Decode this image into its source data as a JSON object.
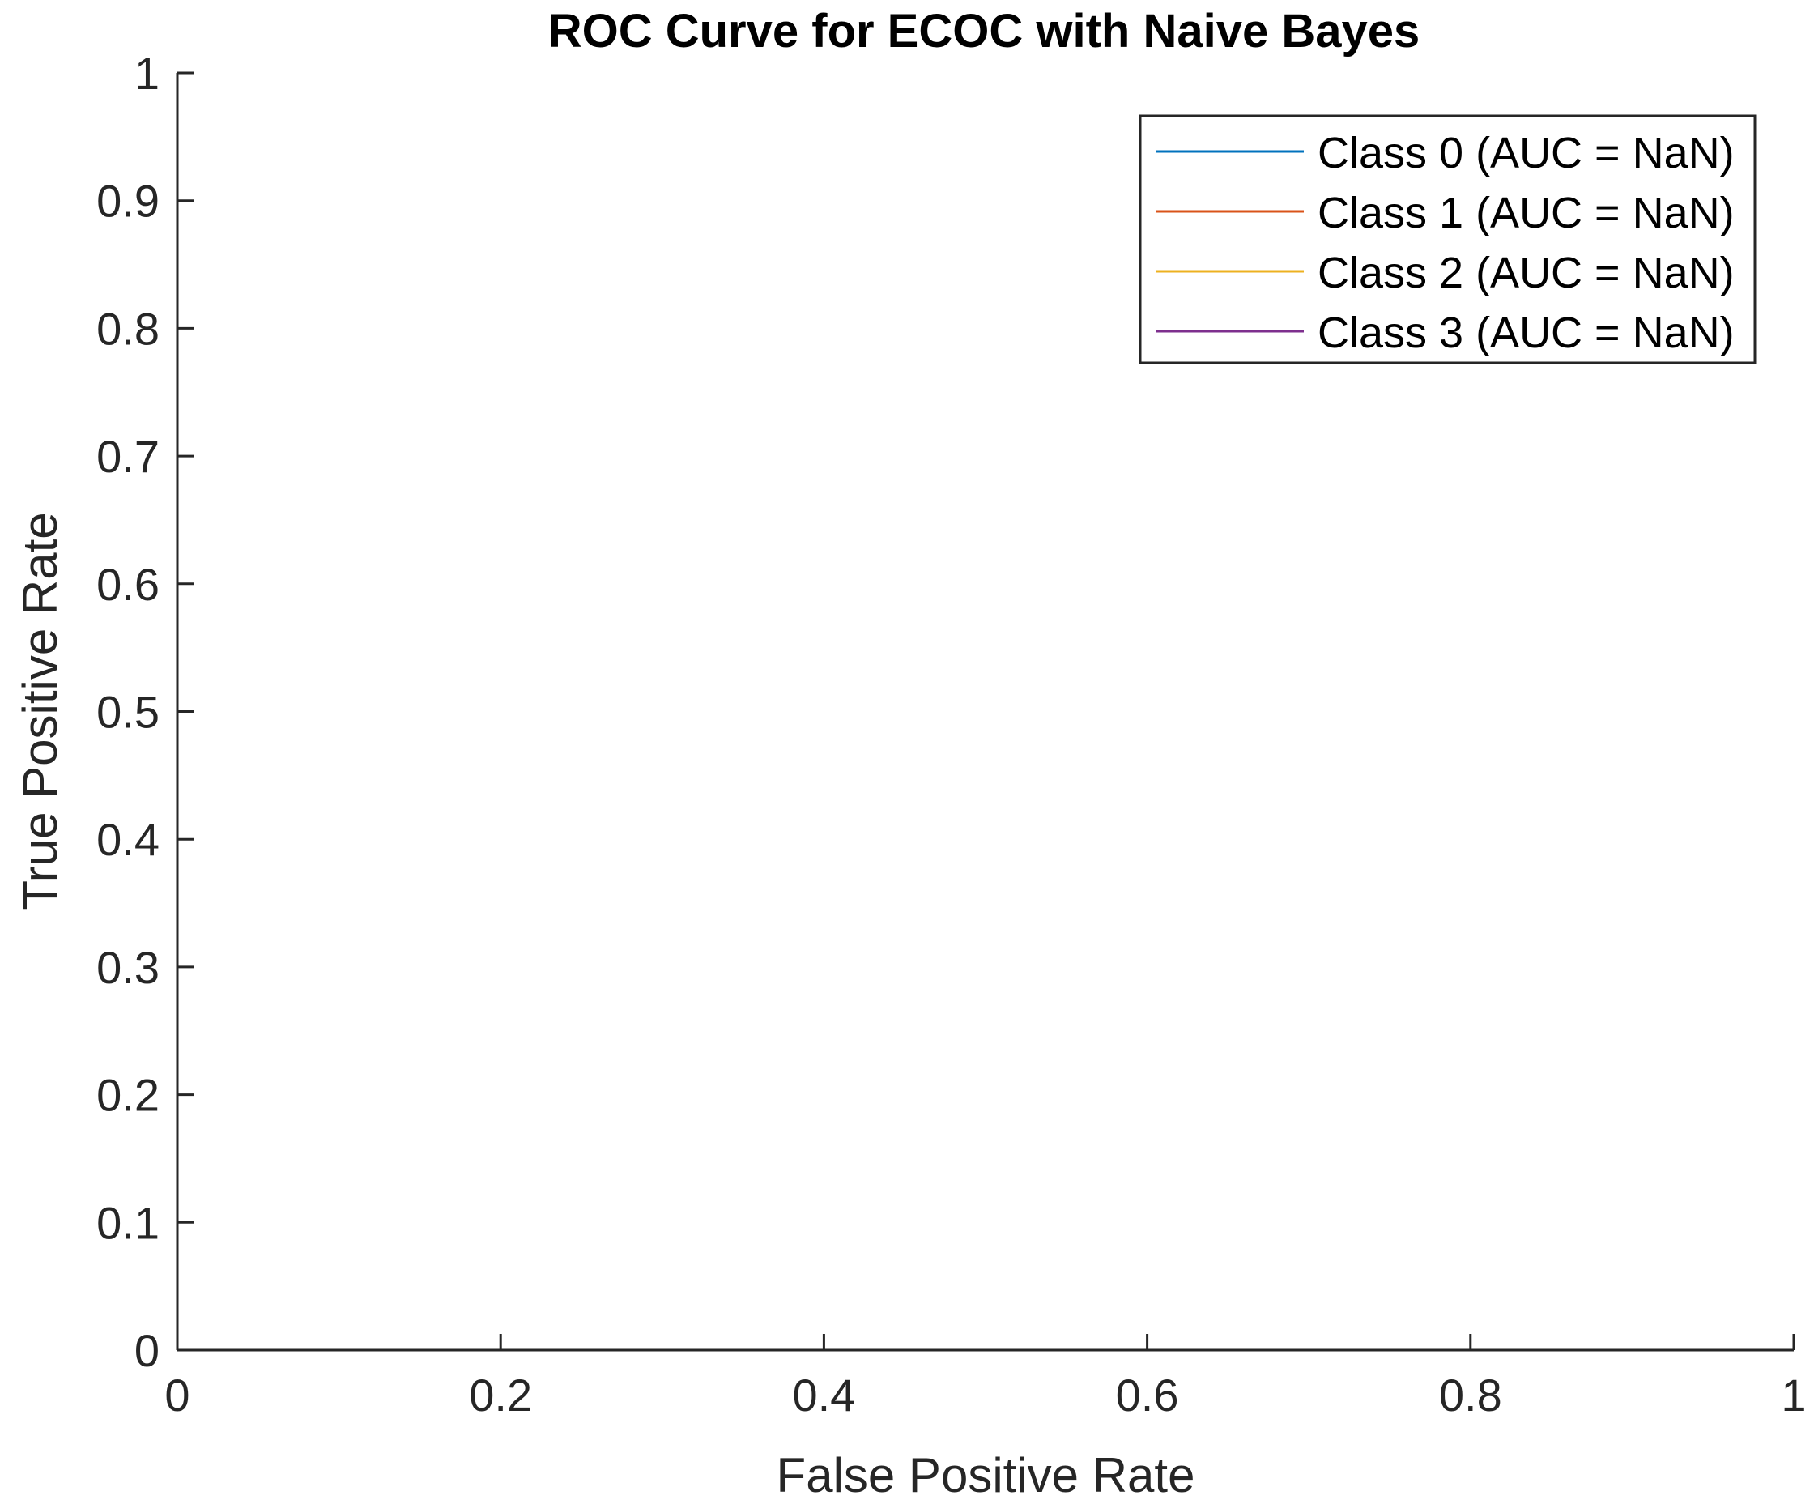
{
  "chart_data": {
    "type": "line",
    "title": "ROC Curve for ECOC with Naive Bayes",
    "xlabel": "False Positive Rate",
    "ylabel": "True Positive Rate",
    "xlim": [
      0,
      1
    ],
    "ylim": [
      0,
      1
    ],
    "x_ticks": [
      0,
      0.2,
      0.4,
      0.6,
      0.8,
      1
    ],
    "x_tick_labels": [
      "0",
      "0.2",
      "0.4",
      "0.6",
      "0.8",
      "1"
    ],
    "y_ticks": [
      0,
      0.1,
      0.2,
      0.3,
      0.4,
      0.5,
      0.6,
      0.7,
      0.8,
      0.9,
      1
    ],
    "y_tick_labels": [
      "0",
      "0.1",
      "0.2",
      "0.3",
      "0.4",
      "0.5",
      "0.6",
      "0.7",
      "0.8",
      "0.9",
      "1"
    ],
    "grid": false,
    "legend_position": "top-right",
    "series": [
      {
        "name": "Class 0 (AUC = NaN)",
        "color": "#0072BD",
        "x": [],
        "y": []
      },
      {
        "name": "Class 1 (AUC = NaN)",
        "color": "#D95319",
        "x": [],
        "y": []
      },
      {
        "name": "Class 2 (AUC = NaN)",
        "color": "#EDB120",
        "x": [],
        "y": []
      },
      {
        "name": "Class 3 (AUC = NaN)",
        "color": "#7E2F8E",
        "x": [],
        "y": []
      }
    ]
  }
}
